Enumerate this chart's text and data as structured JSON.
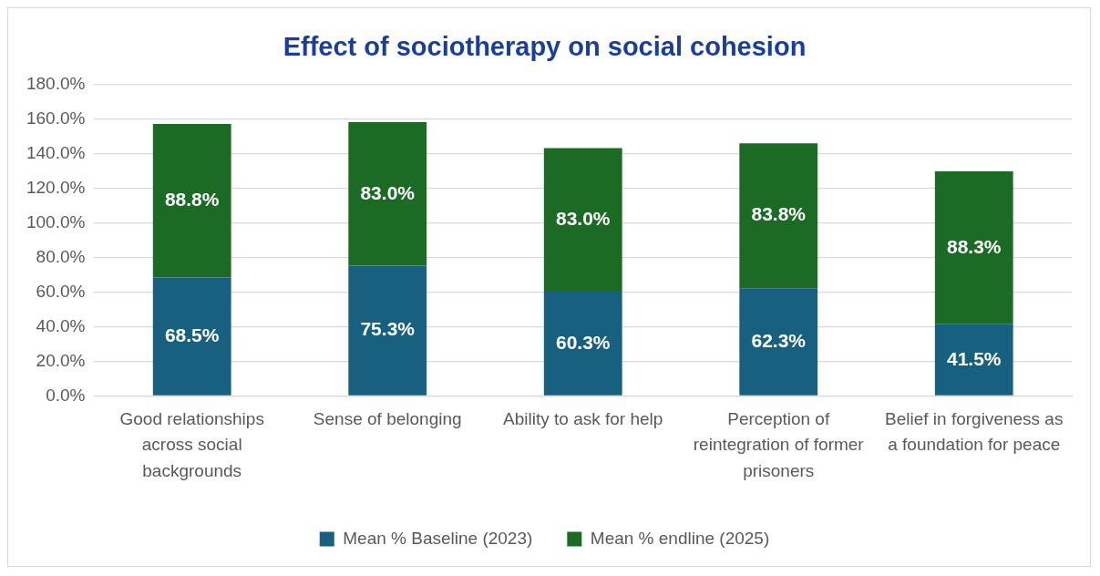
{
  "chart_data": {
    "type": "bar",
    "title": "Effect of sociotherapy on social cohesion",
    "stacked": true,
    "categories": [
      "Good relationships across social backgrounds",
      "Sense of belonging",
      "Ability to ask for help",
      "Perception of reintegration of former prisoners",
      "Belief in forgiveness as a foundation for peace"
    ],
    "series": [
      {
        "name": "Mean % Baseline (2023)",
        "color": "#17607f",
        "values": [
          68.5,
          75.3,
          60.3,
          62.3,
          41.5
        ],
        "value_labels": [
          "68.5%",
          "75.3%",
          "60.3%",
          "62.3%",
          "41.5%"
        ]
      },
      {
        "name": "Mean % endline (2025)",
        "color": "#1b6b24",
        "values": [
          88.8,
          83.0,
          83.0,
          83.8,
          88.3
        ],
        "value_labels": [
          "88.8%",
          "83.0%",
          "83.0%",
          "83.8%",
          "88.3%"
        ]
      }
    ],
    "ylim": [
      0,
      180
    ],
    "yticks": [
      {
        "value": 0,
        "label": "0.0%"
      },
      {
        "value": 20,
        "label": "20.0%"
      },
      {
        "value": 40,
        "label": "40.0%"
      },
      {
        "value": 60,
        "label": "60.0%"
      },
      {
        "value": 80,
        "label": "80.0%"
      },
      {
        "value": 100,
        "label": "100.0%"
      },
      {
        "value": 120,
        "label": "120.0%"
      },
      {
        "value": 140,
        "label": "140.0%"
      },
      {
        "value": 160,
        "label": "160.0%"
      },
      {
        "value": 180,
        "label": "180.0%"
      }
    ],
    "grid": "y",
    "legend": "bottom"
  }
}
